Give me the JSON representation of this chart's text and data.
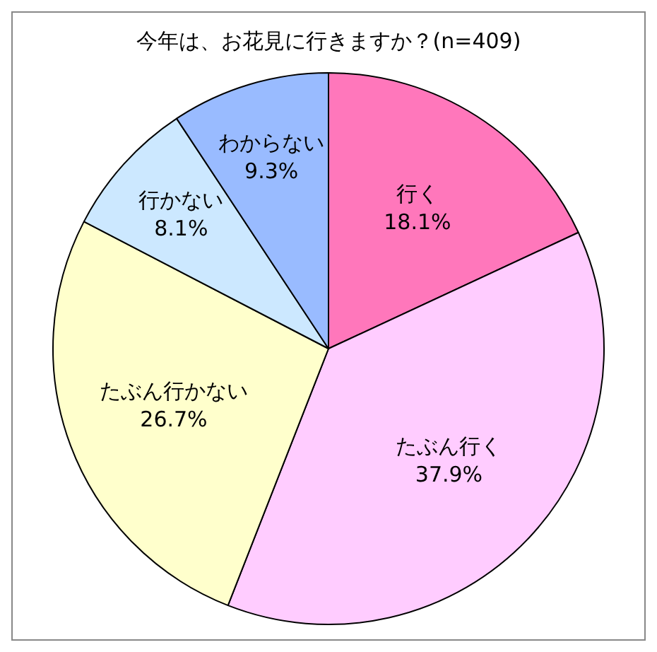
{
  "chart_data": {
    "type": "pie",
    "title": "今年は、お花見に行きますか？(n=409)",
    "categories": [
      "行く",
      "たぶん行く",
      "たぶん行かない",
      "行かない",
      "わからない"
    ],
    "values": [
      18.1,
      37.9,
      26.7,
      8.1,
      9.3
    ],
    "colors": [
      "#ff77bb",
      "#ffccff",
      "#ffffcc",
      "#cce8ff",
      "#99bbff"
    ],
    "value_labels": [
      "18.1%",
      "37.9%",
      "26.7%",
      "8.1%",
      "9.3%"
    ],
    "legend": false
  }
}
